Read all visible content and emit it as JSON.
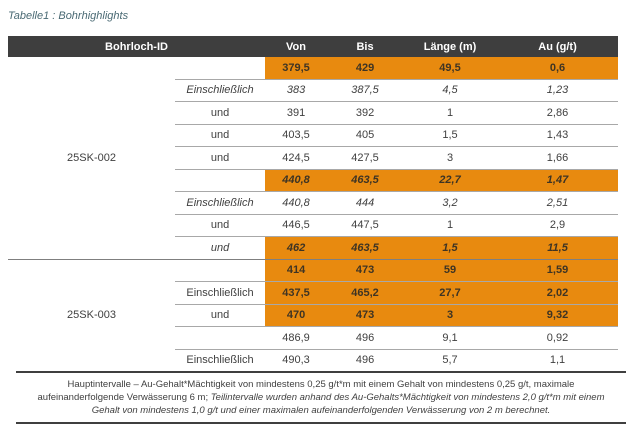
{
  "title": "Tabelle1 : Bohrhighlights",
  "colors": {
    "accent_orange": "#e88a0f",
    "header_bg": "#3e3e3e",
    "title_teal": "#4a6a74",
    "text": "#404040"
  },
  "table": {
    "headers": {
      "borehole": "Bohrloch-ID",
      "von": "Von",
      "bis": "Bis",
      "laenge": "Länge (m)",
      "au": "Au (g/t)"
    },
    "groups": [
      {
        "id": "25SK-002",
        "rows": [
          {
            "label": "",
            "von": "379,5",
            "bis": "429",
            "laenge": "49,5",
            "au": "0,6",
            "highlight": true,
            "italic": false,
            "label_italic": false
          },
          {
            "label": "Einschließlich",
            "von": "383",
            "bis": "387,5",
            "laenge": "4,5",
            "au": "1,23",
            "highlight": false,
            "italic": true,
            "label_italic": true
          },
          {
            "label": "und",
            "von": "391",
            "bis": "392",
            "laenge": "1",
            "au": "2,86",
            "highlight": false,
            "italic": false,
            "label_italic": false
          },
          {
            "label": "und",
            "von": "403,5",
            "bis": "405",
            "laenge": "1,5",
            "au": "1,43",
            "highlight": false,
            "italic": false,
            "label_italic": false
          },
          {
            "label": "und",
            "von": "424,5",
            "bis": "427,5",
            "laenge": "3",
            "au": "1,66",
            "highlight": false,
            "italic": false,
            "label_italic": false
          },
          {
            "label": "",
            "von": "440,8",
            "bis": "463,5",
            "laenge": "22,7",
            "au": "1,47",
            "highlight": true,
            "italic": true,
            "label_italic": false
          },
          {
            "label": "Einschließlich",
            "von": "440,8",
            "bis": "444",
            "laenge": "3,2",
            "au": "2,51",
            "highlight": false,
            "italic": true,
            "label_italic": true
          },
          {
            "label": "und",
            "von": "446,5",
            "bis": "447,5",
            "laenge": "1",
            "au": "2,9",
            "highlight": false,
            "italic": false,
            "label_italic": false
          },
          {
            "label": "und",
            "von": "462",
            "bis": "463,5",
            "laenge": "1,5",
            "au": "11,5",
            "highlight": true,
            "italic": true,
            "label_italic": true
          }
        ]
      },
      {
        "id": "25SK-003",
        "rows": [
          {
            "label": "",
            "von": "414",
            "bis": "473",
            "laenge": "59",
            "au": "1,59",
            "highlight": true,
            "italic": false,
            "label_italic": false
          },
          {
            "label": "Einschließlich",
            "von": "437,5",
            "bis": "465,2",
            "laenge": "27,7",
            "au": "2,02",
            "highlight": true,
            "italic": false,
            "label_italic": false
          },
          {
            "label": "und",
            "von": "470",
            "bis": "473",
            "laenge": "3",
            "au": "9,32",
            "highlight": true,
            "italic": false,
            "label_italic": false
          },
          {
            "label": "",
            "von": "486,9",
            "bis": "496",
            "laenge": "9,1",
            "au": "0,92",
            "highlight": false,
            "italic": false,
            "label_italic": false
          },
          {
            "label": "Einschließlich",
            "von": "490,3",
            "bis": "496",
            "laenge": "5,7",
            "au": "1,1",
            "highlight": false,
            "italic": false,
            "label_italic": false
          }
        ]
      }
    ]
  },
  "footer": {
    "normal": "Hauptintervalle – Au-Gehalt*Mächtigkeit von mindestens 0,25 g/t*m mit einem Gehalt von mindestens 0,25 g/t, maximale aufeinanderfolgende Verwässerung 6 m; ",
    "italic": "Teilintervalle wurden anhand des Au-Gehalts*Mächtigkeit von mindestens 2,0 g/t*m mit einem Gehalt von mindestens 1,0 g/t und einer maximalen aufeinanderfolgenden Verwässerung von 2 m berechnet."
  }
}
